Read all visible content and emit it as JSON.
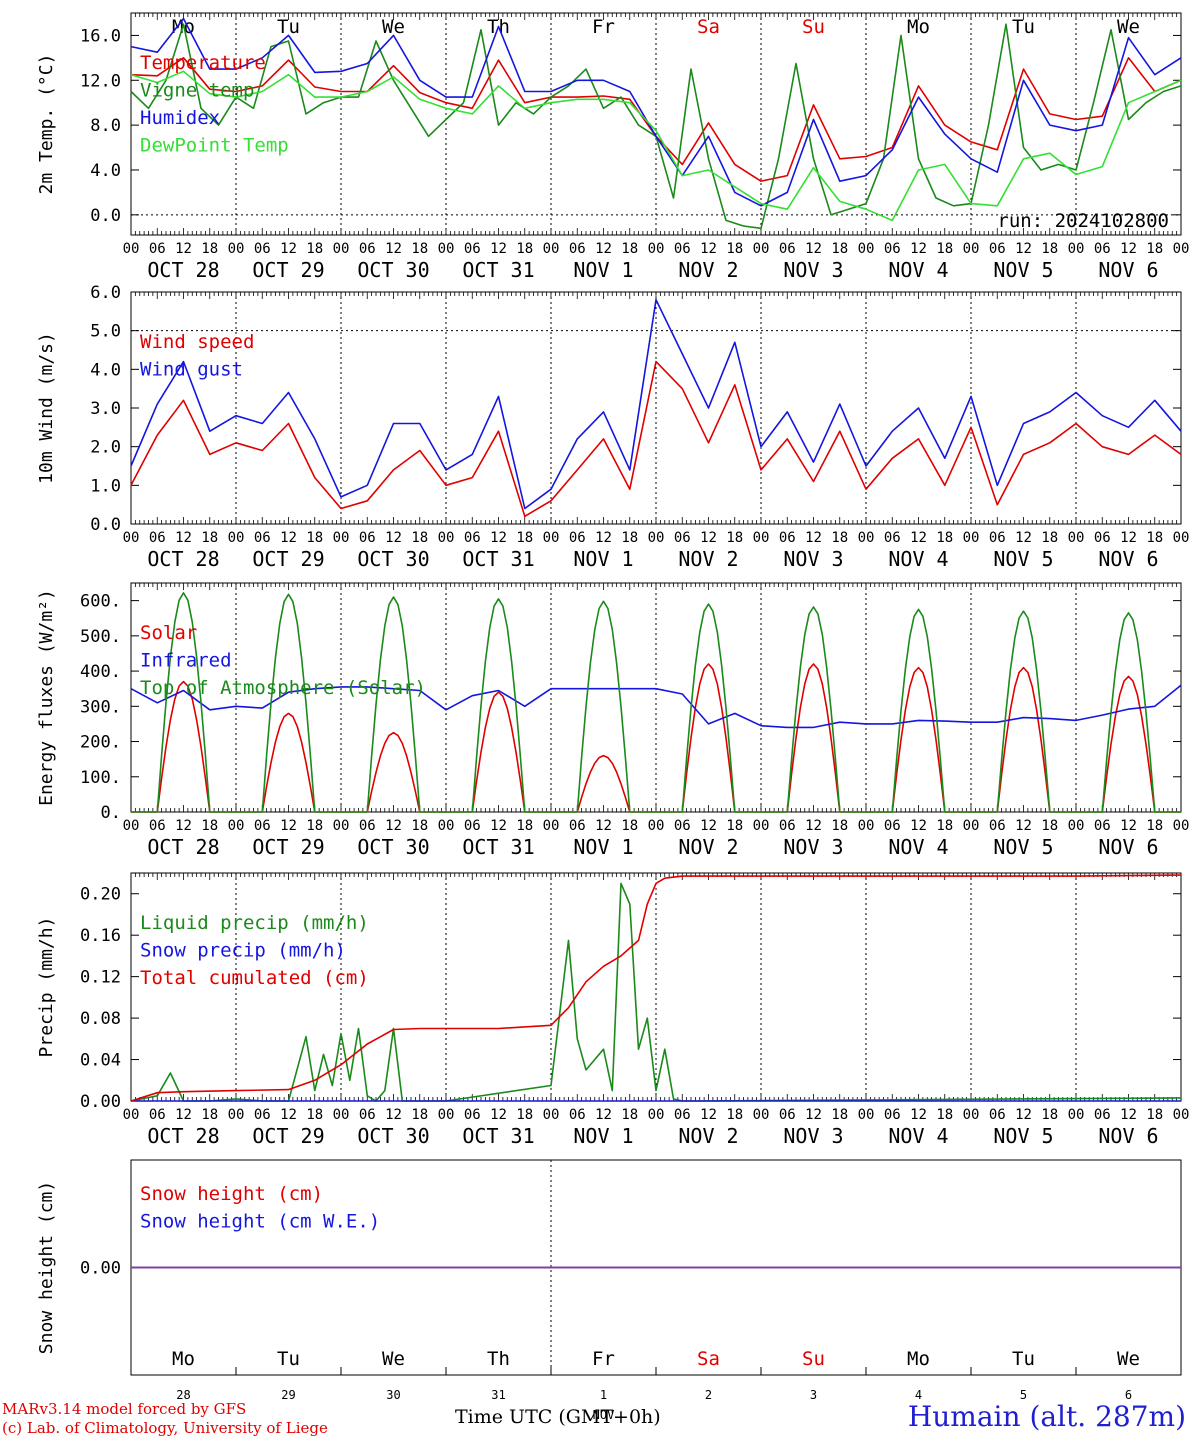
{
  "colors": {
    "red": "#e00000",
    "green": "#1a8a1a",
    "blue": "#1515e0",
    "lightgreen": "#33e033",
    "purple": "#8040a0",
    "grid": "#808080"
  },
  "time_axis": {
    "hour_ticks": [
      "00",
      "06",
      "12",
      "18",
      "00",
      "06",
      "12",
      "18",
      "00",
      "06",
      "12",
      "18",
      "00",
      "06",
      "12",
      "18",
      "00",
      "06",
      "12",
      "18",
      "00",
      "06",
      "12",
      "18",
      "00",
      "06",
      "12",
      "18",
      "00",
      "06",
      "12",
      "18",
      "00",
      "06",
      "12",
      "18",
      "00",
      "06",
      "12",
      "18",
      "00"
    ],
    "date_labels": [
      "OCT 28",
      "OCT 29",
      "OCT 30",
      "OCT 31",
      "NOV 1",
      "NOV 2",
      "NOV 3",
      "NOV 4",
      "NOV 5",
      "NOV 6"
    ],
    "weekdays": [
      "Mo",
      "Tu",
      "We",
      "Th",
      "Fr",
      "Sa",
      "Su",
      "Mo",
      "Tu",
      "We"
    ],
    "weekend_days": [
      "Sa",
      "Su"
    ],
    "day_numbers": [
      "28",
      "29",
      "30",
      "31",
      "1",
      "2",
      "3",
      "4",
      "5",
      "6"
    ],
    "month_label": "NOV",
    "title": "Time UTC (GMT+0h)"
  },
  "footer": {
    "model": "MARv3.14 model forced by GFS",
    "credit": "(c) Lab. of Climatology, University of Liege",
    "station": "Humain (alt. 287m)"
  },
  "chart_data": [
    {
      "type": "line",
      "ylabel": "2m Temp. (°C)",
      "ylim": [
        -1.8,
        18
      ],
      "yticks": [
        "0.0",
        "4.0",
        "8.0",
        "12.0",
        "16.0"
      ],
      "yticks_values": [
        0,
        4,
        8,
        12,
        16
      ],
      "dashed_y": [
        0
      ],
      "run_label": "run: 2024102800",
      "x_unit": "hours since OCT 28 00 UTC",
      "series": [
        {
          "name": "Temperature",
          "color_key": "red",
          "x": [
            0,
            6,
            12,
            18,
            24,
            30,
            36,
            42,
            48,
            54,
            60,
            66,
            72,
            78,
            84,
            90,
            96,
            102,
            108,
            114,
            120,
            126,
            132,
            138,
            144,
            150,
            156,
            162,
            168,
            174,
            180,
            186,
            192,
            198,
            204,
            210,
            216,
            222,
            228,
            234,
            240
          ],
          "values": [
            12.5,
            12.4,
            14,
            11.2,
            11,
            11.5,
            13.8,
            11.4,
            11,
            11,
            13.3,
            10.9,
            10,
            9.5,
            13.8,
            10,
            10.5,
            10.5,
            10.6,
            10.3,
            7,
            4.5,
            8.2,
            4.5,
            3,
            3.5,
            9.8,
            5,
            5.2,
            6,
            11.5,
            8,
            6.5,
            5.8,
            13,
            9,
            8.5,
            8.8,
            14,
            11,
            12
          ]
        },
        {
          "name": "Vigne temp",
          "color_key": "green",
          "x": [
            0,
            4,
            8,
            12,
            16,
            20,
            24,
            28,
            32,
            36,
            40,
            44,
            48,
            52,
            56,
            60,
            64,
            68,
            72,
            76,
            80,
            84,
            88,
            92,
            96,
            100,
            104,
            108,
            112,
            116,
            120,
            124,
            128,
            132,
            136,
            140,
            144,
            148,
            152,
            156,
            160,
            164,
            168,
            172,
            176,
            180,
            184,
            188,
            192,
            196,
            200,
            204,
            208,
            212,
            216,
            220,
            224,
            228,
            232,
            236,
            240
          ],
          "values": [
            11,
            9.5,
            12,
            17,
            9.5,
            8,
            10.5,
            9.5,
            15,
            15.5,
            9,
            10,
            10.5,
            10.5,
            15.5,
            12,
            9.5,
            7,
            8.5,
            10,
            16.5,
            8,
            10,
            9,
            10.5,
            11.5,
            13,
            9.5,
            10.5,
            8,
            7,
            1.5,
            13,
            5,
            -0.5,
            -1,
            -1.2,
            5,
            13.5,
            5,
            0,
            0.5,
            1,
            5,
            16,
            5,
            1.5,
            0.8,
            1,
            8,
            17,
            6,
            4,
            4.5,
            4,
            10,
            16.5,
            8.5,
            10,
            11,
            11.5
          ]
        },
        {
          "name": "Humidex",
          "color_key": "blue",
          "x": [
            0,
            6,
            12,
            18,
            24,
            30,
            36,
            42,
            48,
            54,
            60,
            66,
            72,
            78,
            84,
            90,
            96,
            102,
            108,
            114,
            120,
            126,
            132,
            138,
            144,
            150,
            156,
            162,
            168,
            174,
            180,
            186,
            192,
            198,
            204,
            210,
            216,
            222,
            228,
            234,
            240
          ],
          "values": [
            15,
            14.5,
            17.5,
            13,
            13,
            14,
            16,
            12.7,
            12.8,
            13.5,
            16,
            12,
            10.5,
            10.5,
            16.8,
            11,
            11,
            12,
            12,
            11,
            7,
            3.5,
            7,
            2,
            0.8,
            2,
            8.5,
            3,
            3.5,
            5.8,
            10.5,
            7.2,
            5,
            3.8,
            12,
            8,
            7.5,
            8,
            15.8,
            12.5,
            14
          ]
        },
        {
          "name": "DewPoint Temp",
          "color_key": "lightgreen",
          "x": [
            0,
            6,
            12,
            18,
            24,
            30,
            36,
            42,
            48,
            54,
            60,
            66,
            72,
            78,
            84,
            90,
            96,
            102,
            108,
            114,
            120,
            126,
            132,
            138,
            144,
            150,
            156,
            162,
            168,
            174,
            180,
            186,
            192,
            198,
            204,
            210,
            216,
            222,
            228,
            234,
            240
          ],
          "values": [
            12.5,
            11.8,
            12.8,
            10.8,
            10.5,
            11,
            12.5,
            10.5,
            10.5,
            11,
            12.3,
            10.3,
            9.5,
            9,
            11.5,
            9.5,
            10,
            10.3,
            10.3,
            10,
            7.5,
            3.5,
            4,
            2.5,
            1,
            0.5,
            4.2,
            1.2,
            0.5,
            -0.5,
            4,
            4.5,
            1,
            0.8,
            5,
            5.5,
            3.6,
            4.3,
            10,
            11,
            12
          ]
        }
      ],
      "legend_placement": "top-left"
    },
    {
      "type": "line",
      "ylabel": "10m Wind (m/s)",
      "ylim": [
        0,
        6
      ],
      "yticks": [
        "0.0",
        "1.0",
        "2.0",
        "3.0",
        "4.0",
        "5.0",
        "6.0"
      ],
      "yticks_values": [
        0,
        1,
        2,
        3,
        4,
        5,
        6
      ],
      "dashed_y": [
        5
      ],
      "series": [
        {
          "name": "Wind speed",
          "color_key": "red",
          "x": [
            0,
            6,
            12,
            18,
            24,
            30,
            36,
            42,
            48,
            54,
            60,
            66,
            72,
            78,
            84,
            90,
            96,
            102,
            108,
            114,
            120,
            126,
            132,
            138,
            144,
            150,
            156,
            162,
            168,
            174,
            180,
            186,
            192,
            198,
            204,
            210,
            216,
            222,
            228,
            234,
            240
          ],
          "values": [
            1,
            2.3,
            3.2,
            1.8,
            2.1,
            1.9,
            2.6,
            1.2,
            0.4,
            0.6,
            1.4,
            1.9,
            1,
            1.2,
            2.4,
            0.2,
            0.6,
            1.4,
            2.2,
            0.9,
            4.2,
            3.5,
            2.1,
            3.6,
            1.4,
            2.2,
            1.1,
            2.4,
            0.9,
            1.7,
            2.2,
            1,
            2.5,
            0.5,
            1.8,
            2.1,
            2.6,
            2,
            1.8,
            2.3,
            1.8
          ]
        },
        {
          "name": "Wind gust",
          "color_key": "blue",
          "x": [
            0,
            6,
            12,
            18,
            24,
            30,
            36,
            42,
            48,
            54,
            60,
            66,
            72,
            78,
            84,
            90,
            96,
            102,
            108,
            114,
            120,
            126,
            132,
            138,
            144,
            150,
            156,
            162,
            168,
            174,
            180,
            186,
            192,
            198,
            204,
            210,
            216,
            222,
            228,
            234,
            240
          ],
          "values": [
            1.5,
            3.1,
            4.2,
            2.4,
            2.8,
            2.6,
            3.4,
            2.2,
            0.7,
            1,
            2.6,
            2.6,
            1.4,
            1.8,
            3.3,
            0.4,
            0.9,
            2.2,
            2.9,
            1.4,
            5.8,
            4.4,
            3,
            4.7,
            2,
            2.9,
            1.6,
            3.1,
            1.5,
            2.4,
            3,
            1.7,
            3.3,
            1,
            2.6,
            2.9,
            3.4,
            2.8,
            2.5,
            3.2,
            2.4
          ]
        }
      ],
      "legend_placement": "top-left"
    },
    {
      "type": "line",
      "ylabel": "Energy fluxes (W/m²)",
      "ylim": [
        0,
        650
      ],
      "yticks": [
        "0.",
        "100.",
        "200.",
        "300.",
        "400.",
        "500.",
        "600."
      ],
      "yticks_values": [
        0,
        100,
        200,
        300,
        400,
        500,
        600
      ],
      "series": [
        {
          "name": "Solar",
          "color_key": "red",
          "daily_peaks": [
            370,
            280,
            225,
            340,
            160,
            420,
            420,
            410,
            410,
            385
          ]
        },
        {
          "name": "Infrared",
          "color_key": "blue",
          "x": [
            0,
            6,
            12,
            18,
            24,
            30,
            36,
            42,
            48,
            54,
            60,
            66,
            72,
            78,
            84,
            90,
            96,
            102,
            108,
            114,
            120,
            126,
            132,
            138,
            144,
            150,
            156,
            162,
            168,
            174,
            180,
            186,
            192,
            198,
            204,
            210,
            216,
            222,
            228,
            234,
            240
          ],
          "values": [
            350,
            310,
            345,
            290,
            300,
            295,
            340,
            350,
            355,
            355,
            350,
            345,
            290,
            330,
            345,
            300,
            350,
            350,
            350,
            350,
            350,
            335,
            250,
            280,
            245,
            240,
            240,
            255,
            250,
            250,
            260,
            258,
            255,
            255,
            268,
            265,
            260,
            275,
            292,
            300,
            360
          ]
        },
        {
          "name": "Top of Atmosphere (Solar)",
          "color_key": "green",
          "daily_peaks": [
            622,
            618,
            610,
            605,
            598,
            590,
            582,
            575,
            570,
            565
          ]
        }
      ],
      "solar_window_hours": [
        6,
        18
      ],
      "legend_placement": "top-left"
    },
    {
      "type": "line",
      "ylabel": "Precip (mm/h)",
      "ylim": [
        0,
        0.22
      ],
      "yticks": [
        "0.00",
        "0.04",
        "0.08",
        "0.12",
        "0.16",
        "0.20"
      ],
      "yticks_values": [
        0,
        0.04,
        0.08,
        0.12,
        0.16,
        0.2
      ],
      "series": [
        {
          "name": "Liquid precip (mm/h)",
          "color_key": "green",
          "x": [
            0,
            6,
            9,
            12,
            18,
            24,
            30,
            36,
            40,
            42,
            44,
            46,
            48,
            50,
            52,
            54,
            56,
            58,
            60,
            62,
            66,
            72,
            96,
            100,
            102,
            104,
            106,
            108,
            110,
            112,
            114,
            116,
            118,
            120,
            122,
            124,
            126,
            130,
            240
          ],
          "values": [
            0,
            0.005,
            0.027,
            0,
            0,
            0.002,
            0,
            0,
            0.062,
            0.01,
            0.045,
            0.015,
            0.065,
            0.02,
            0.07,
            0.005,
            0,
            0.01,
            0.07,
            0,
            0,
            0,
            0.015,
            0.155,
            0.06,
            0.03,
            0.04,
            0.05,
            0.01,
            0.21,
            0.19,
            0.05,
            0.08,
            0.01,
            0.05,
            0.002,
            0,
            0,
            0.003
          ]
        },
        {
          "name": "Snow precip (mm/h)",
          "color_key": "blue",
          "x": [
            0,
            240
          ],
          "values": [
            0,
            0
          ]
        },
        {
          "name": "Total cumulated (cm)",
          "color_key": "red",
          "x": [
            0,
            6,
            12,
            24,
            36,
            42,
            48,
            54,
            60,
            66,
            72,
            84,
            96,
            100,
            104,
            108,
            112,
            116,
            118,
            120,
            122,
            126,
            132,
            144,
            168,
            192,
            216,
            240
          ],
          "values": [
            0,
            0.008,
            0.009,
            0.01,
            0.011,
            0.02,
            0.035,
            0.055,
            0.069,
            0.07,
            0.07,
            0.07,
            0.073,
            0.09,
            0.115,
            0.13,
            0.14,
            0.155,
            0.19,
            0.21,
            0.215,
            0.217,
            0.217,
            0.217,
            0.217,
            0.217,
            0.217,
            0.218
          ]
        }
      ],
      "legend_placement": "top-left"
    },
    {
      "type": "line",
      "ylabel": "Snow height (cm)",
      "ylim": [
        -1,
        1
      ],
      "yticks": [
        "0.00"
      ],
      "yticks_values": [
        0
      ],
      "series": [
        {
          "name": "Snow height (cm)",
          "color_key": "red",
          "x": [
            0,
            240
          ],
          "values": [
            0,
            0
          ]
        },
        {
          "name": "Snow height (cm W.E.)",
          "color_key": "blue",
          "x": [
            0,
            240
          ],
          "values": [
            0,
            0
          ]
        }
      ],
      "legend_placement": "top-left"
    }
  ]
}
